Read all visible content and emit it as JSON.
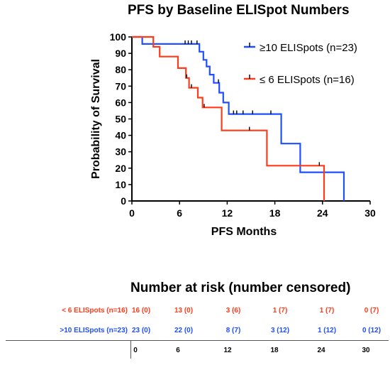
{
  "colors": {
    "group_high": "#1f4fff",
    "group_low": "#ff3b1a",
    "axis": "#000000"
  },
  "chart_data": {
    "type": "line",
    "title": "PFS by Baseline ELISpot Numbers",
    "xlabel": "PFS Months",
    "ylabel": "Probability of Survival",
    "xlim": [
      0,
      30
    ],
    "ylim": [
      0,
      100
    ],
    "x_ticks": [
      "0",
      "6",
      "12",
      "18",
      "24",
      "30"
    ],
    "y_ticks": [
      "0",
      "10",
      "20",
      "30",
      "40",
      "50",
      "60",
      "70",
      "80",
      "90",
      "100"
    ],
    "legend_position": "top-right",
    "grid": false,
    "series": [
      {
        "name": "≥10 ELISpots (n=23)",
        "color": "#1f4fff",
        "steps": [
          [
            0,
            100
          ],
          [
            1.3,
            100
          ],
          [
            1.3,
            95.7
          ],
          [
            8.5,
            95.7
          ],
          [
            8.5,
            91
          ],
          [
            9,
            91
          ],
          [
            9,
            86
          ],
          [
            9.4,
            86
          ],
          [
            9.4,
            82
          ],
          [
            9.8,
            82
          ],
          [
            9.8,
            77
          ],
          [
            10.3,
            77
          ],
          [
            10.3,
            72
          ],
          [
            11,
            72
          ],
          [
            11,
            66
          ],
          [
            11.5,
            66
          ],
          [
            11.5,
            60
          ],
          [
            12.2,
            60
          ],
          [
            12.2,
            53
          ],
          [
            18.8,
            53
          ],
          [
            18.8,
            35
          ],
          [
            21.2,
            35
          ],
          [
            21.2,
            17.5
          ],
          [
            26.7,
            17.5
          ],
          [
            26.7,
            0
          ]
        ],
        "censored": [
          [
            6.7,
            95.7
          ],
          [
            7.1,
            95.7
          ],
          [
            7.5,
            95.7
          ],
          [
            8.2,
            95.7
          ],
          [
            10.9,
            72
          ],
          [
            12.8,
            53
          ],
          [
            13.2,
            53
          ],
          [
            14,
            53
          ],
          [
            15.2,
            53
          ],
          [
            17.5,
            53
          ]
        ]
      },
      {
        "name": "≤ 6 ELISpots (n=16)",
        "color": "#ff3b1a",
        "steps": [
          [
            0,
            100
          ],
          [
            2.7,
            100
          ],
          [
            2.7,
            94
          ],
          [
            3.5,
            94
          ],
          [
            3.5,
            88
          ],
          [
            5.8,
            88
          ],
          [
            5.8,
            81
          ],
          [
            6.8,
            81
          ],
          [
            6.8,
            75
          ],
          [
            7.2,
            75
          ],
          [
            7.2,
            69
          ],
          [
            8.3,
            69
          ],
          [
            8.3,
            63
          ],
          [
            8.9,
            63
          ],
          [
            8.9,
            57
          ],
          [
            11.3,
            57
          ],
          [
            11.3,
            43
          ],
          [
            17,
            43
          ],
          [
            17,
            21.5
          ],
          [
            24.2,
            21.5
          ],
          [
            24.2,
            0
          ]
        ],
        "censored": [
          [
            6.9,
            75
          ],
          [
            7.5,
            69
          ],
          [
            9.1,
            57
          ],
          [
            14.8,
            43
          ],
          [
            23.6,
            21.5
          ]
        ]
      }
    ]
  },
  "risk_table": {
    "title": "Number at risk (number censored)",
    "ticks": [
      "0",
      "6",
      "12",
      "18",
      "24",
      "30"
    ],
    "rows": [
      {
        "label": "< 6 ELISpots (n=16)",
        "color": "#ff3b1a",
        "values": [
          "16 (0)",
          "13 (0)",
          "3 (6)",
          "1 (7)",
          "1 (7)",
          "0 (7)"
        ]
      },
      {
        "label": ">10 ELISpots (n=23)",
        "color": "#1f4fff",
        "values": [
          "23 (0)",
          "22 (0)",
          "8 (7)",
          "3 (12)",
          "1 (12)",
          "0 (12)"
        ]
      }
    ]
  }
}
